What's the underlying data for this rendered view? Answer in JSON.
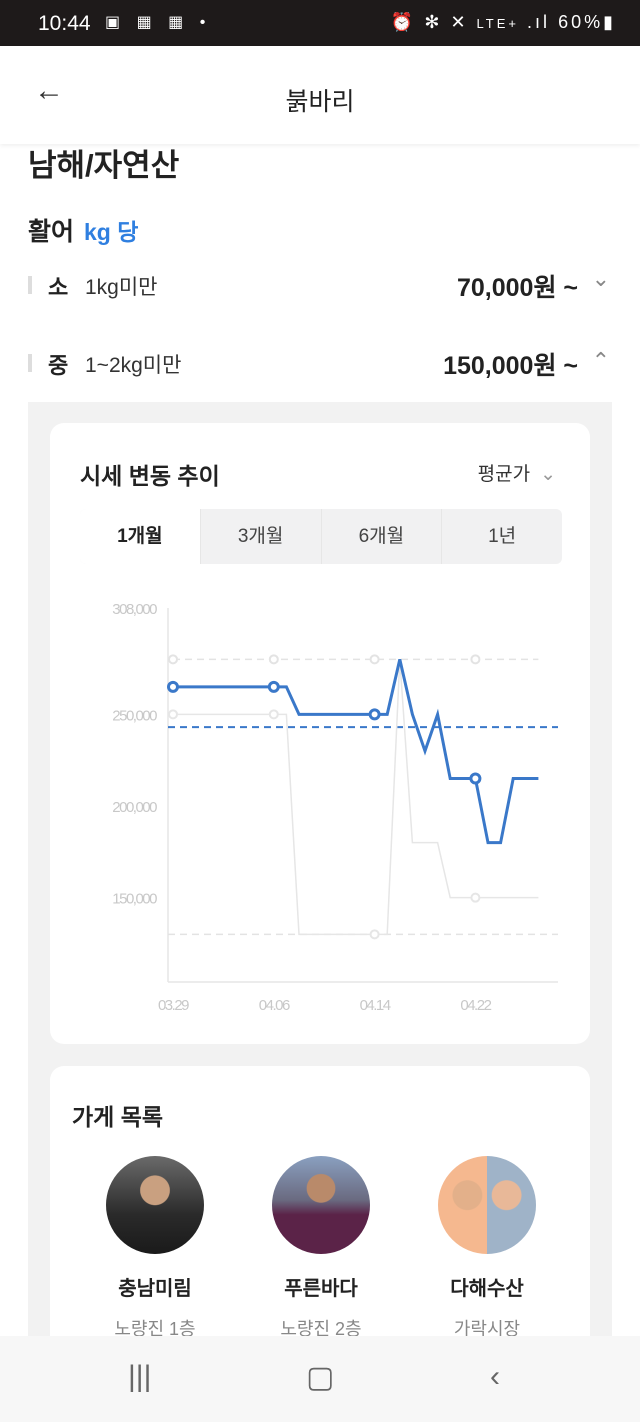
{
  "status_bar": {
    "time": "10:44",
    "left_icons": [
      "gallery-icon",
      "webtoon-icon",
      "webtoon-icon",
      "dot-icon"
    ],
    "right_icons": [
      "alarm-icon",
      "bluetooth-icon",
      "mute-icon",
      "lte-icon",
      "signal-icon"
    ],
    "network": "LTE+",
    "battery": "60%"
  },
  "header": {
    "title": "붉바리"
  },
  "origin": "남해/자연산",
  "category": {
    "label": "활어",
    "unit": "kg 당"
  },
  "sizes": [
    {
      "size": "소",
      "range": "1kg미만",
      "price": "70,000원 ~",
      "expanded": false
    },
    {
      "size": "중",
      "range": "1~2kg미만",
      "price": "150,000원 ~",
      "expanded": true
    }
  ],
  "trend": {
    "title": "시세 변동 추이",
    "dropdown": "평균가",
    "tabs": [
      "1개월",
      "3개월",
      "6개월",
      "1년"
    ],
    "active_tab": "1개월"
  },
  "chart_data": {
    "type": "line",
    "x": [
      "03/29",
      "03/30",
      "03/31",
      "04/01",
      "04/02",
      "04/03",
      "04/04",
      "04/05",
      "04/06",
      "04/07",
      "04/08",
      "04/09",
      "04/10",
      "04/11",
      "04/12",
      "04/13",
      "04/14",
      "04/15",
      "04/16",
      "04/17",
      "04/18",
      "04/19",
      "04/20",
      "04/21",
      "04/22",
      "04/23",
      "04/24",
      "04/25",
      "04/26",
      "04/27"
    ],
    "x_tick_labels": [
      "03.29",
      "04.06",
      "04.14",
      "04.22"
    ],
    "y_tick_labels": [
      "308,000",
      "250,000",
      "200,000",
      "150,000"
    ],
    "y_ticks": [
      308000,
      250000,
      200000,
      150000
    ],
    "ylim": [
      104000,
      308000
    ],
    "grid": false,
    "series": [
      {
        "values": [
          265000,
          265000,
          265000,
          265000,
          265000,
          265000,
          265000,
          265000,
          265000,
          265000,
          250000,
          250000,
          250000,
          250000,
          250000,
          250000,
          250000,
          250000,
          280000,
          250000,
          230000,
          250000,
          215000,
          215000,
          215000,
          180000,
          180000,
          215000,
          215000,
          215000
        ],
        "color": "#3a78c9",
        "style": "solid"
      },
      {
        "values": [
          280000,
          280000,
          280000,
          280000,
          280000,
          280000,
          280000,
          280000,
          280000,
          280000,
          280000,
          280000,
          280000,
          280000,
          280000,
          280000,
          280000,
          280000,
          280000,
          280000,
          280000,
          280000,
          280000,
          280000,
          280000,
          280000,
          280000,
          280000,
          280000,
          280000
        ],
        "color": "#e3e3e3",
        "style": "dashed"
      },
      {
        "values": [
          250000,
          250000,
          250000,
          250000,
          250000,
          250000,
          250000,
          250000,
          250000,
          250000,
          130000,
          130000,
          130000,
          130000,
          130000,
          130000,
          130000,
          130000,
          280000,
          180000,
          180000,
          180000,
          150000,
          150000,
          150000,
          150000,
          150000,
          150000,
          150000,
          150000
        ],
        "color": "#e6e6e6",
        "style": "solid"
      }
    ],
    "reference_lines": [
      {
        "value": 243000,
        "color": "#3a78c9",
        "style": "dashed"
      },
      {
        "value": 130000,
        "color": "#e3e3e3",
        "style": "dashed"
      }
    ]
  },
  "stores": {
    "title": "가게 목록",
    "items": [
      {
        "name": "충남미림",
        "location": "노량진 1층"
      },
      {
        "name": "푸른바다",
        "location": "노량진 2층"
      },
      {
        "name": "다해수산",
        "location": "가락시장"
      }
    ]
  },
  "colors": {
    "accent": "#2f7fe0",
    "chart_line": "#3a78c9"
  }
}
